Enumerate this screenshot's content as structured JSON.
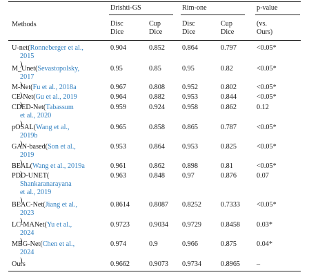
{
  "header": {
    "methods": "Methods",
    "group1": "Drishti-GS",
    "group2": "Rim-one",
    "pvalue": "p-value",
    "disc_dice_1": "Disc",
    "disc_dice_2": "Dice",
    "cup_dice_1": "Cup",
    "cup_dice_2": "Dice",
    "vs_1": "(vs.",
    "vs_2": "Ours)"
  },
  "rows": [
    {
      "lines": [
        [
          "U-net(",
          "Ronneberger et al.,"
        ],
        [
          "",
          "2015"
        ],
        [
          "",
          ")"
        ]
      ],
      "d1": "0.904",
      "c1": "0.852",
      "d2": "0.864",
      "c2": "0.797",
      "p": "<0.05*"
    },
    {
      "lines": [
        [
          "M_Unet(",
          "Sevastopolsky,"
        ],
        [
          "",
          "2017"
        ],
        [
          "",
          ")"
        ]
      ],
      "d1": "0.95",
      "c1": "0.85",
      "d2": "0.95",
      "c2": "0.82",
      "p": "<0.05*"
    },
    {
      "lines": [
        [
          "M-Net(",
          "Fu et al., 2018a"
        ],
        [
          "",
          ")"
        ]
      ],
      "d1": "0.967",
      "c1": "0.808",
      "d2": "0.952",
      "c2": "0.802",
      "p": "<0.05*"
    },
    {
      "lines": [
        [
          "CE-Net(",
          "Gu et al., 2019"
        ],
        [
          "",
          ")"
        ]
      ],
      "d1": "0.964",
      "c1": "0.882",
      "d2": "0.953",
      "c2": "0.844",
      "p": "<0.05*"
    },
    {
      "lines": [
        [
          "CDED-Net(",
          "Tabassum"
        ],
        [
          "",
          "et al., 2020"
        ],
        [
          "",
          ")"
        ]
      ],
      "d1": "0.959",
      "c1": "0.924",
      "d2": "0.958",
      "c2": "0.862",
      "p": "0.12"
    },
    {
      "lines": [
        [
          "pOSAL(",
          "Wang et al.,"
        ],
        [
          "",
          "2019b"
        ],
        [
          "",
          ")"
        ]
      ],
      "d1": "0.965",
      "c1": "0.858",
      "d2": "0.865",
      "c2": "0.787",
      "p": "<0.05*"
    },
    {
      "lines": [
        [
          "GAN-based(",
          "Son et al.,"
        ],
        [
          "",
          "2019"
        ],
        [
          "",
          ")"
        ]
      ],
      "d1": "0.953",
      "c1": "0.864",
      "d2": "0.953",
      "c2": "0.825",
      "p": "<0.05*"
    },
    {
      "lines": [
        [
          "BEAL(",
          "Wang et al., 2019a"
        ],
        [
          "",
          ")"
        ]
      ],
      "d1": "0.961",
      "c1": "0.862",
      "d2": "0.898",
      "c2": "0.81",
      "p": "<0.05*"
    },
    {
      "lines": [
        [
          "PDD-UNET(",
          ""
        ],
        [
          "",
          "Shankaranarayana"
        ],
        [
          "",
          "et al., 2019"
        ],
        [
          "",
          ")"
        ]
      ],
      "d1": "0.963",
      "c1": "0.848",
      "d2": "0.97",
      "c2": "0.876",
      "p": "0.07"
    },
    {
      "lines": [
        [
          "BEAC-Net(",
          "Jiang et al.,"
        ],
        [
          "",
          "2023"
        ],
        [
          "",
          ")"
        ]
      ],
      "d1": "0.8614",
      "c1": "0.8087",
      "d2": "0.8252",
      "c2": "0.7333",
      "p": "<0.05*"
    },
    {
      "lines": [
        [
          "LC-MANet(",
          "Yu et al.,"
        ],
        [
          "",
          "2024"
        ],
        [
          "",
          ")"
        ]
      ],
      "d1": "0.9723",
      "c1": "0.9034",
      "d2": "0.9729",
      "c2": "0.8458",
      "p": "0.03*"
    },
    {
      "lines": [
        [
          "MBG-Net(",
          "Chen et al.,"
        ],
        [
          "",
          "2024"
        ],
        [
          "",
          ")"
        ]
      ],
      "d1": "0.974",
      "c1": "0.9",
      "d2": "0.966",
      "c2": "0.875",
      "p": "0.04*"
    },
    {
      "lines": [
        [
          "Ours",
          ""
        ]
      ],
      "d1": "0.9662",
      "c1": "0.9073",
      "d2": "0.9734",
      "c2": "0.8965",
      "p": "–"
    }
  ],
  "colors": {
    "citation": "#2f7fc0",
    "text": "#1a1a1a",
    "rule": "#222222"
  }
}
